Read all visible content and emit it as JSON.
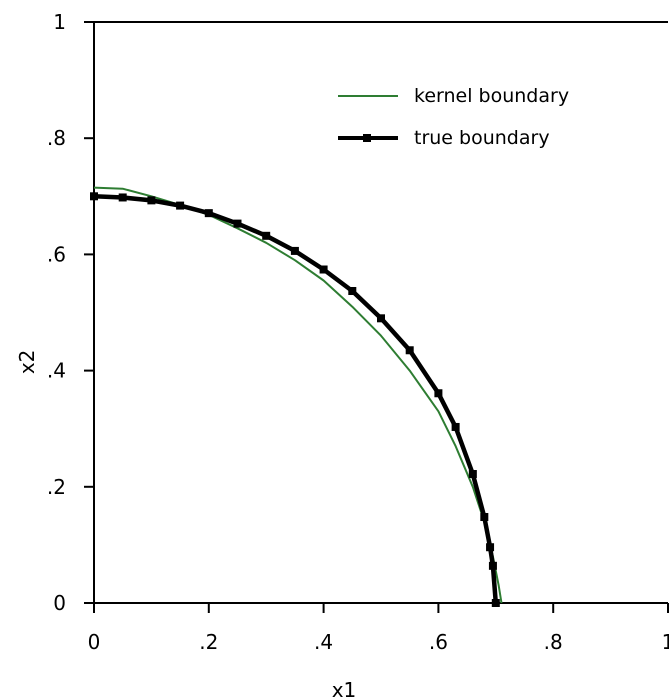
{
  "chart_data": {
    "type": "line",
    "xlabel": "x1",
    "ylabel": "x2",
    "xlim": [
      0,
      1
    ],
    "ylim": [
      0,
      1
    ],
    "x_ticks": [
      {
        "value": 0,
        "label": "0"
      },
      {
        "value": 0.2,
        "label": ".2"
      },
      {
        "value": 0.4,
        "label": ".4"
      },
      {
        "value": 0.6,
        "label": ".6"
      },
      {
        "value": 0.8,
        "label": ".8"
      },
      {
        "value": 1,
        "label": "1"
      }
    ],
    "y_ticks": [
      {
        "value": 0,
        "label": "0"
      },
      {
        "value": 0.2,
        "label": ".2"
      },
      {
        "value": 0.4,
        "label": ".4"
      },
      {
        "value": 0.6,
        "label": ".6"
      },
      {
        "value": 0.8,
        "label": ".8"
      },
      {
        "value": 1,
        "label": "1"
      }
    ],
    "grid": false,
    "legend_position": "top-right",
    "series": [
      {
        "name": "kernel boundary",
        "color": "#2e7d32",
        "style": "line",
        "x": [
          0.0,
          0.05,
          0.1,
          0.15,
          0.2,
          0.25,
          0.3,
          0.35,
          0.4,
          0.45,
          0.5,
          0.55,
          0.6,
          0.63,
          0.66,
          0.68,
          0.695,
          0.705,
          0.71
        ],
        "y": [
          0.715,
          0.713,
          0.7,
          0.685,
          0.668,
          0.645,
          0.62,
          0.59,
          0.555,
          0.51,
          0.46,
          0.4,
          0.33,
          0.27,
          0.2,
          0.14,
          0.08,
          0.03,
          0.0
        ]
      },
      {
        "name": "true boundary",
        "color": "#000000",
        "style": "line-square-markers",
        "x": [
          0.0,
          0.05,
          0.1,
          0.15,
          0.2,
          0.25,
          0.3,
          0.35,
          0.4,
          0.45,
          0.5,
          0.55,
          0.6,
          0.63,
          0.66,
          0.68,
          0.69,
          0.695,
          0.7
        ],
        "y": [
          0.7,
          0.698,
          0.693,
          0.684,
          0.671,
          0.653,
          0.632,
          0.606,
          0.574,
          0.537,
          0.49,
          0.435,
          0.361,
          0.303,
          0.222,
          0.148,
          0.096,
          0.064,
          0.0
        ]
      }
    ]
  }
}
